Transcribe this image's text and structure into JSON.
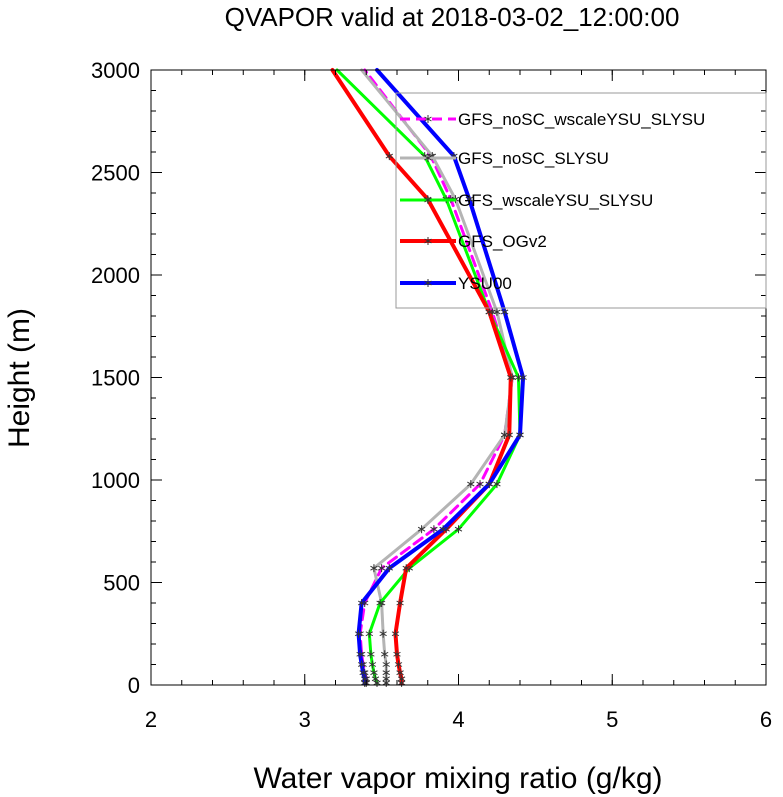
{
  "chart_data": {
    "type": "line",
    "title": "QVAPOR valid at 2018-03-02_12:00:00",
    "xlabel": "Water vapor mixing ratio (g/kg)",
    "ylabel": "Height (m)",
    "xlim": [
      2,
      6
    ],
    "ylim": [
      0,
      3000
    ],
    "xticks": [
      2,
      3,
      4,
      5,
      6
    ],
    "yticks": [
      0,
      500,
      1000,
      1500,
      2000,
      2500,
      3000
    ],
    "grid": false,
    "legend_position": "top-right",
    "heights": [
      10,
      30,
      60,
      100,
      150,
      250,
      400,
      570,
      760,
      980,
      1220,
      1500,
      1820,
      2370,
      2580,
      3000
    ],
    "series": [
      {
        "name": "GFS_noSC_wscaleYSU_SLYSU",
        "color": "#ff00ff",
        "dash": true,
        "width": 3,
        "values": [
          3.4,
          3.4,
          3.39,
          3.38,
          3.37,
          3.36,
          3.39,
          3.5,
          3.84,
          4.14,
          4.3,
          4.35,
          4.22,
          3.95,
          3.82,
          3.39
        ]
      },
      {
        "name": "GFS_noSC_SLYSU",
        "color": "#b4b4b4",
        "dash": false,
        "width": 3,
        "values": [
          3.53,
          3.53,
          3.53,
          3.53,
          3.52,
          3.51,
          3.5,
          3.45,
          3.76,
          4.08,
          4.3,
          4.35,
          4.25,
          3.98,
          3.83,
          3.37
        ]
      },
      {
        "name": "GFS_wscaleYSU_SLYSU",
        "color": "#00ff00",
        "dash": false,
        "width": 3,
        "values": [
          3.47,
          3.46,
          3.45,
          3.44,
          3.43,
          3.42,
          3.49,
          3.68,
          4.0,
          4.25,
          4.4,
          4.39,
          4.2,
          3.92,
          3.78,
          3.21
        ]
      },
      {
        "name": "GFS_OGv2",
        "color": "#ff0000",
        "dash": false,
        "width": 4,
        "values": [
          3.63,
          3.63,
          3.62,
          3.61,
          3.6,
          3.59,
          3.62,
          3.66,
          3.92,
          4.2,
          4.33,
          4.34,
          4.2,
          3.8,
          3.55,
          3.18
        ]
      },
      {
        "name": "YSU00",
        "color": "#0000ff",
        "dash": false,
        "width": 4,
        "values": [
          3.39,
          3.39,
          3.38,
          3.37,
          3.36,
          3.35,
          3.37,
          3.55,
          3.9,
          4.2,
          4.4,
          4.42,
          4.3,
          4.07,
          3.97,
          3.47
        ]
      }
    ]
  }
}
